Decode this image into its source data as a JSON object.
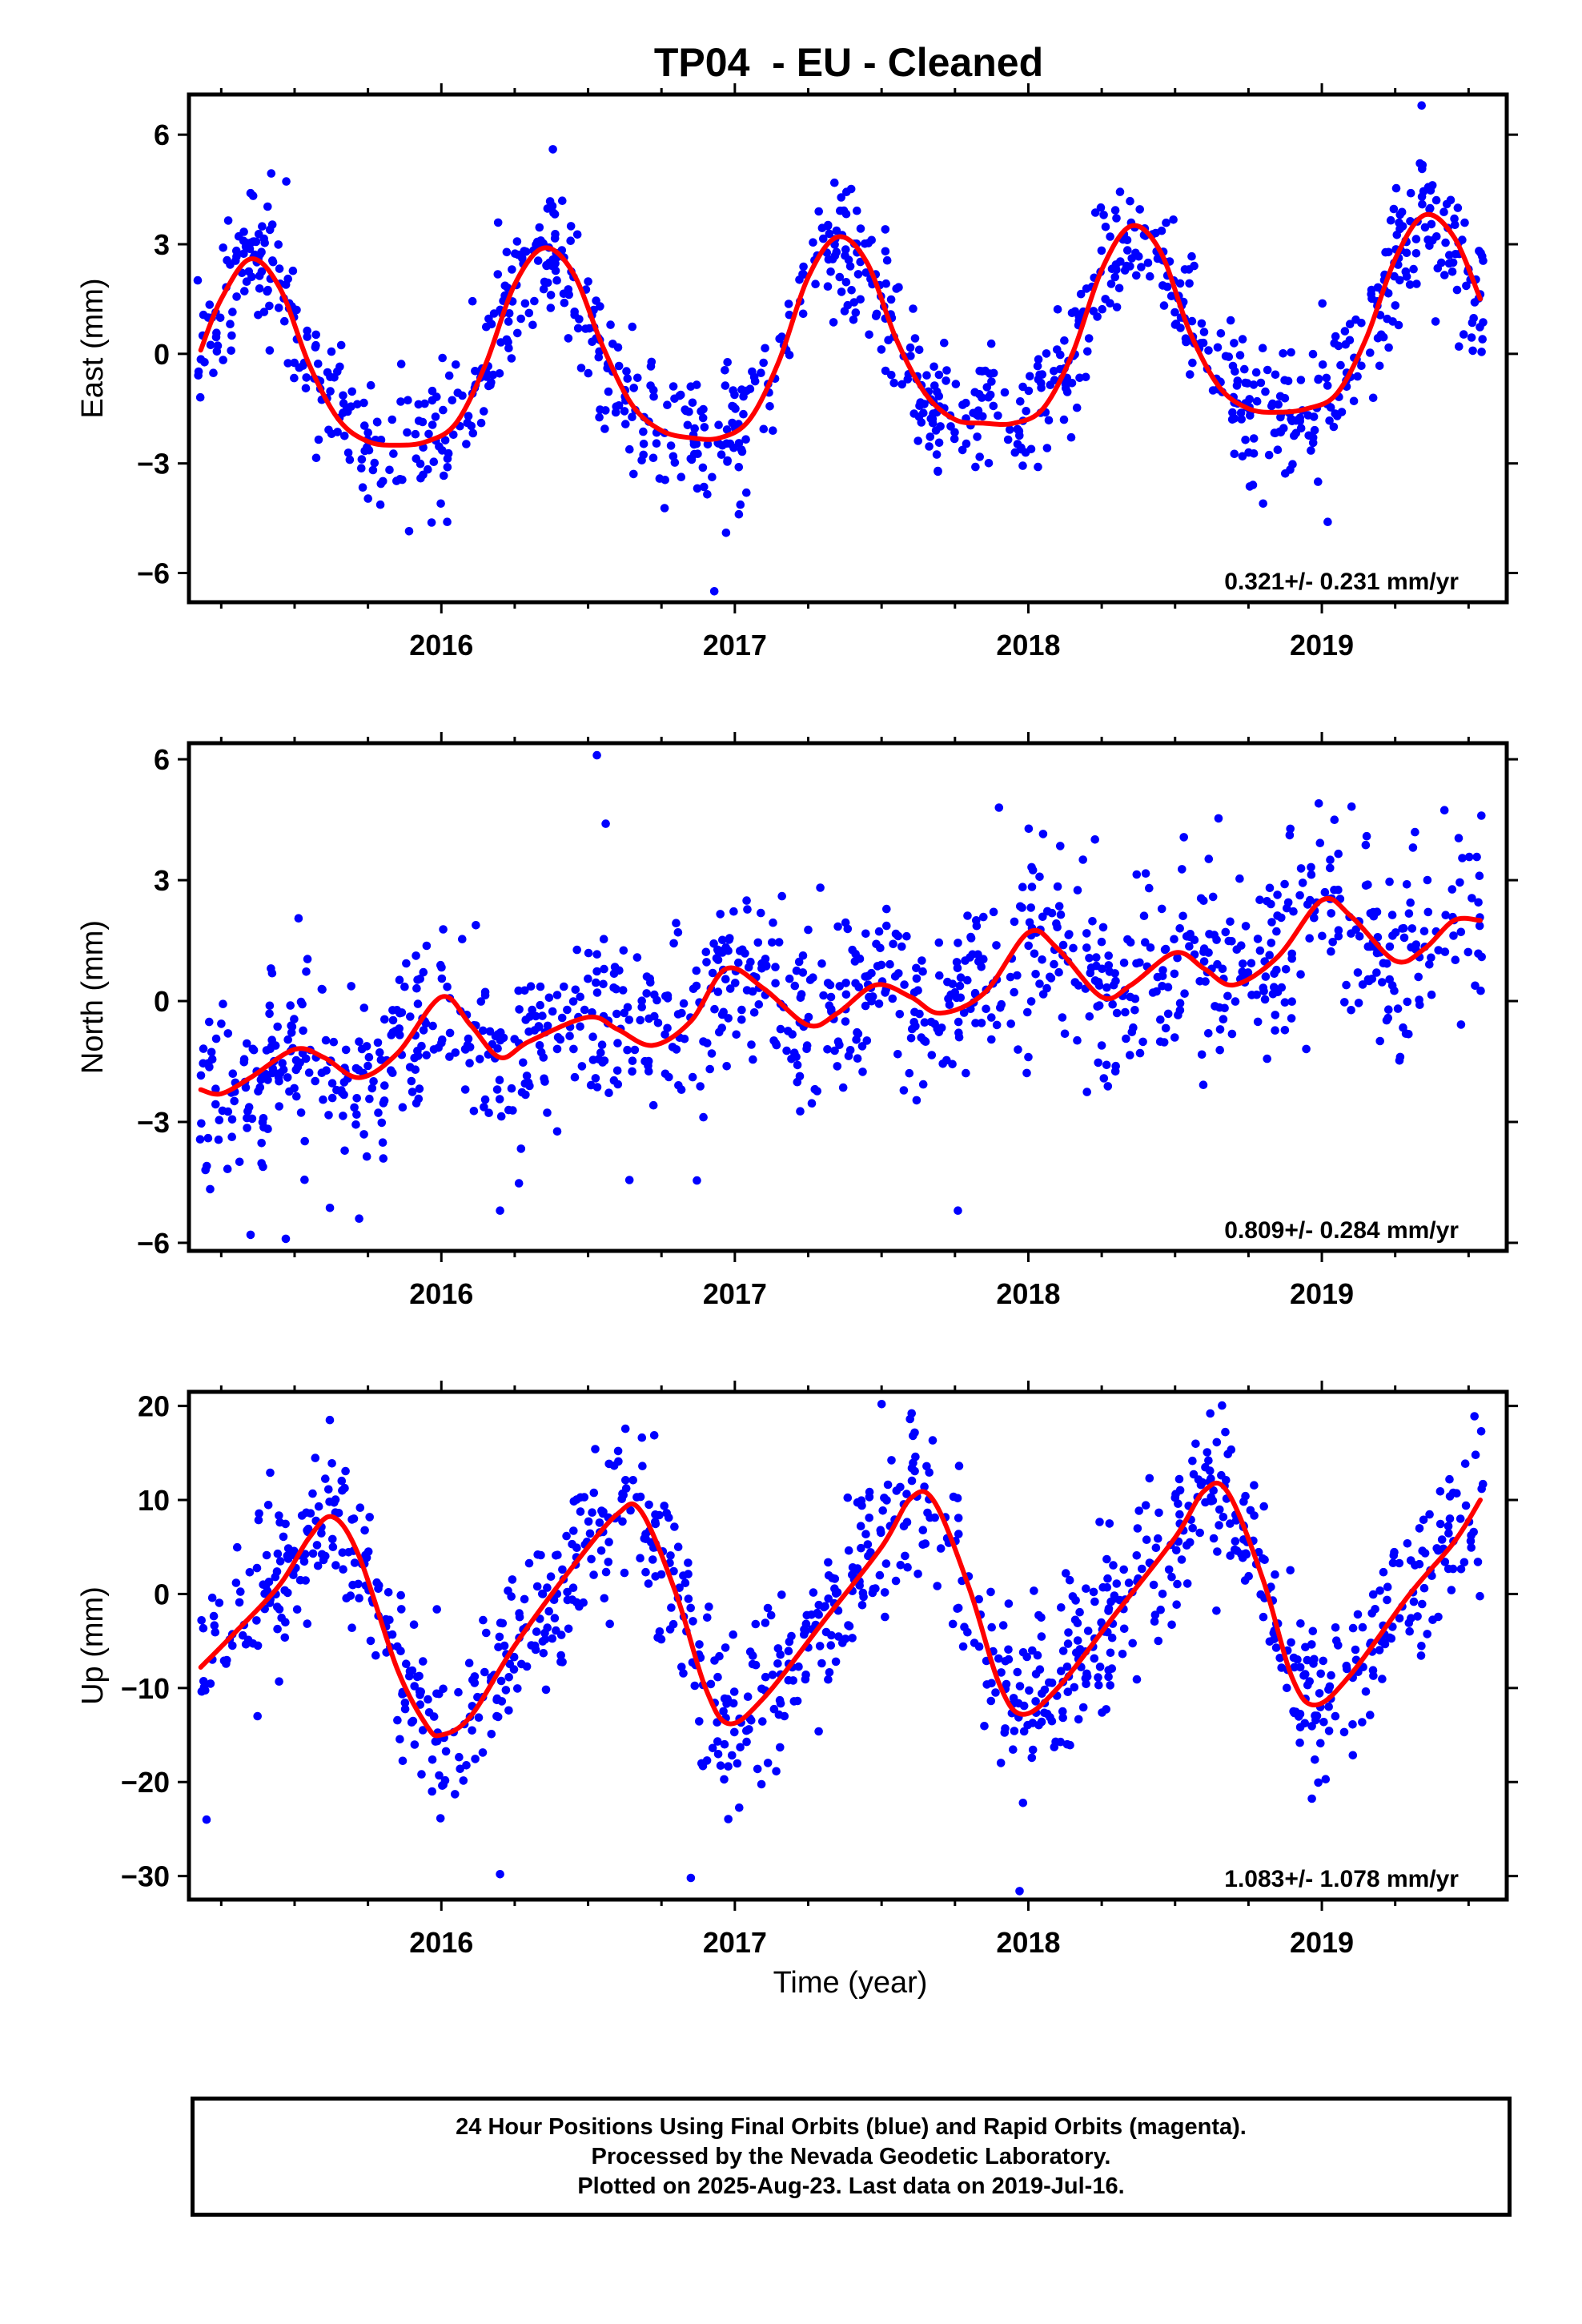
{
  "title": "TP04  - EU - Cleaned",
  "xlabel": "Time (year)",
  "caption": {
    "line1": "24 Hour Positions Using Final Orbits (blue) and Rapid Orbits (magenta).",
    "line2": "Processed by the Nevada Geodetic Laboratory.",
    "line3": "Plotted on 2025-Aug-23. Last data on 2019-Jul-16."
  },
  "colors": {
    "points": "#0000ff",
    "fit": "#ff0000",
    "frame": "#000000"
  },
  "chart_data": [
    {
      "type": "scatter",
      "name": "east",
      "ylabel": "East (mm)",
      "xlim": [
        2015.14,
        2019.63
      ],
      "ylim": [
        -6.8,
        7.1
      ],
      "yticks": [
        -6,
        -3,
        0,
        3,
        6
      ],
      "yticklabels": [
        "−6",
        "−3",
        "0",
        "3",
        "6"
      ],
      "xticks": [
        2016,
        2017,
        2018,
        2019
      ],
      "xticklabels": [
        "2016",
        "2017",
        "2018",
        "2019"
      ],
      "annotation": "0.321+/- 0.231 mm/yr",
      "fit_curve": {
        "x": [
          2015.18,
          2015.25,
          2015.35,
          2015.45,
          2015.55,
          2015.65,
          2015.75,
          2015.85,
          2015.95,
          2016.05,
          2016.15,
          2016.25,
          2016.35,
          2016.45,
          2016.55,
          2016.65,
          2016.75,
          2016.85,
          2016.95,
          2017.05,
          2017.15,
          2017.25,
          2017.35,
          2017.45,
          2017.55,
          2017.65,
          2017.75,
          2017.85,
          2017.95,
          2018.05,
          2018.15,
          2018.25,
          2018.35,
          2018.45,
          2018.55,
          2018.65,
          2018.75,
          2018.85,
          2018.95,
          2019.05,
          2019.15,
          2019.25,
          2019.35,
          2019.45,
          2019.54
        ],
        "y": [
          0.1,
          1.5,
          2.6,
          1.8,
          -0.3,
          -1.8,
          -2.4,
          -2.5,
          -2.4,
          -1.9,
          -0.3,
          1.9,
          2.9,
          2.2,
          0.2,
          -1.4,
          -2.1,
          -2.3,
          -2.3,
          -1.8,
          -0.2,
          2.1,
          3.2,
          2.5,
          0.4,
          -1.1,
          -1.8,
          -1.9,
          -1.9,
          -1.5,
          0.0,
          2.3,
          3.5,
          2.8,
          0.6,
          -0.9,
          -1.5,
          -1.6,
          -1.5,
          -1.1,
          0.4,
          2.6,
          3.8,
          3.2,
          1.5
        ]
      },
      "points": {
        "seed": 11,
        "n": 1050,
        "x_range": [
          2015.17,
          2019.55
        ],
        "sigma": 0.95,
        "outliers": [
          [
            2016.02,
            -4.6
          ],
          [
            2016.93,
            -6.5
          ],
          [
            2016.97,
            -4.9
          ],
          [
            2018.8,
            -4.1
          ],
          [
            2019.02,
            -4.6
          ],
          [
            2019.34,
            6.8
          ],
          [
            2016.38,
            5.6
          ],
          [
            2015.35,
            4.4
          ]
        ]
      }
    },
    {
      "type": "scatter",
      "name": "north",
      "ylabel": "North (mm)",
      "xlim": [
        2015.14,
        2019.63
      ],
      "ylim": [
        -6.2,
        6.4
      ],
      "yticks": [
        -6,
        -3,
        0,
        3,
        6
      ],
      "yticklabels": [
        "−6",
        "−3",
        "0",
        "3",
        "6"
      ],
      "xticks": [
        2016,
        2017,
        2018,
        2019
      ],
      "xticklabels": [
        "2016",
        "2017",
        "2018",
        "2019"
      ],
      "annotation": "0.809+/- 0.284 mm/yr",
      "fit_curve": {
        "x": [
          2015.18,
          2015.25,
          2015.35,
          2015.5,
          2015.6,
          2015.72,
          2015.85,
          2016.0,
          2016.1,
          2016.2,
          2016.3,
          2016.5,
          2016.6,
          2016.72,
          2016.85,
          2016.97,
          2017.1,
          2017.25,
          2017.35,
          2017.48,
          2017.6,
          2017.7,
          2017.85,
          2018.0,
          2018.1,
          2018.25,
          2018.35,
          2018.5,
          2018.6,
          2018.7,
          2018.85,
          2019.0,
          2019.1,
          2019.25,
          2019.35,
          2019.45,
          2019.54
        ],
        "y": [
          -2.2,
          -2.3,
          -1.9,
          -1.2,
          -1.4,
          -1.9,
          -1.3,
          0.1,
          -0.6,
          -1.4,
          -1.0,
          -0.4,
          -0.7,
          -1.1,
          -0.5,
          0.8,
          0.3,
          -0.6,
          -0.3,
          0.4,
          0.1,
          -0.3,
          0.2,
          1.7,
          1.3,
          0.1,
          0.4,
          1.2,
          0.8,
          0.4,
          1.1,
          2.5,
          2.1,
          1.0,
          1.3,
          2.0,
          2.0
        ]
      },
      "points": {
        "seed": 23,
        "n": 1050,
        "x_range": [
          2015.17,
          2019.55
        ],
        "sigma": 1.15,
        "outliers": [
          [
            2016.53,
            6.1
          ],
          [
            2016.56,
            4.4
          ],
          [
            2017.9,
            4.8
          ],
          [
            2015.35,
            -5.8
          ],
          [
            2015.47,
            -5.9
          ],
          [
            2015.72,
            -5.4
          ],
          [
            2016.2,
            -5.2
          ],
          [
            2017.76,
            -5.2
          ]
        ]
      }
    },
    {
      "type": "scatter",
      "name": "up",
      "ylabel": "Up (mm)",
      "xlim": [
        2015.14,
        2019.63
      ],
      "ylim": [
        -32.5,
        21.5
      ],
      "yticks": [
        -30,
        -20,
        -10,
        0,
        10,
        20
      ],
      "yticklabels": [
        "−30",
        "−20",
        "−10",
        "0",
        "10",
        "20"
      ],
      "xticks": [
        2016,
        2017,
        2018,
        2019
      ],
      "xticklabels": [
        "2016",
        "2017",
        "2018",
        "2019"
      ],
      "annotation": "1.083+/- 1.078 mm/yr",
      "fit_curve": {
        "x": [
          2015.18,
          2015.3,
          2015.45,
          2015.55,
          2015.63,
          2015.72,
          2015.85,
          2015.95,
          2016.0,
          2016.1,
          2016.25,
          2016.45,
          2016.6,
          2016.68,
          2016.8,
          2016.9,
          2016.98,
          2017.1,
          2017.3,
          2017.5,
          2017.6,
          2017.68,
          2017.8,
          2017.9,
          2017.98,
          2018.1,
          2018.3,
          2018.5,
          2018.6,
          2018.68,
          2018.8,
          2018.9,
          2018.98,
          2019.1,
          2019.3,
          2019.45,
          2019.54
        ],
        "y": [
          -7.8,
          -4.0,
          1.0,
          6.0,
          8.2,
          4.0,
          -8.0,
          -14.0,
          -15.0,
          -13.0,
          -5.5,
          3.0,
          8.5,
          8.8,
          0.0,
          -10.0,
          -13.8,
          -11.0,
          -3.0,
          5.0,
          10.2,
          9.8,
          0.5,
          -9.5,
          -12.8,
          -10.0,
          -2.0,
          6.0,
          11.0,
          10.8,
          1.5,
          -9.0,
          -11.8,
          -8.5,
          0.0,
          5.5,
          10.0
        ]
      },
      "points": {
        "seed": 37,
        "n": 1050,
        "x_range": [
          2015.17,
          2019.55
        ],
        "sigma": 4.3,
        "outliers": [
          [
            2016.85,
            -30.2
          ],
          [
            2017.97,
            -31.6
          ],
          [
            2016.2,
            -29.8
          ],
          [
            2015.2,
            -24.0
          ],
          [
            2017.5,
            20.2
          ],
          [
            2018.62,
            19.2
          ],
          [
            2019.52,
            18.9
          ],
          [
            2015.62,
            18.5
          ]
        ]
      }
    }
  ]
}
